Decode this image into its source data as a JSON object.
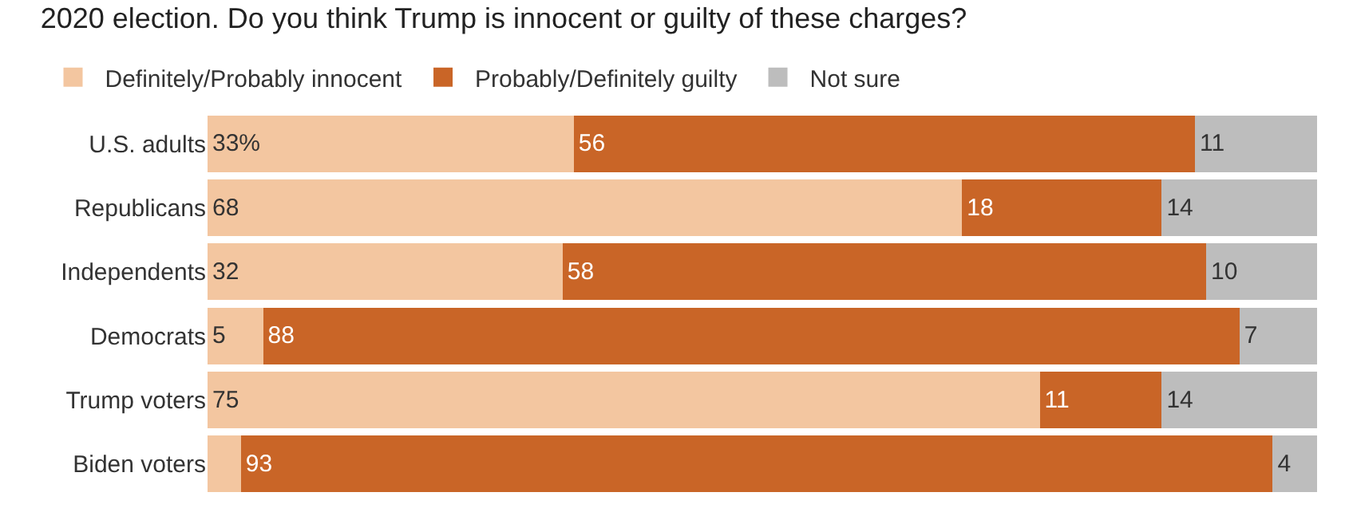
{
  "chart_data": {
    "type": "bar",
    "orientation": "horizontal",
    "stacked": true,
    "title": "2020 election. Do you think Trump is innocent or guilty of these charges?",
    "categories": [
      "U.S. adults",
      "Republicans",
      "Independents",
      "Democrats",
      "Trump voters",
      "Biden voters"
    ],
    "series": [
      {
        "name": "Definitely/Probably innocent",
        "color": "#f3c6a0",
        "values": [
          33,
          68,
          32,
          5,
          75,
          3
        ],
        "value_labels": [
          "33%",
          "68",
          "32",
          "5",
          "75",
          null
        ]
      },
      {
        "name": "Probably/Definitely guilty",
        "color": "#c96527",
        "values": [
          56,
          18,
          58,
          88,
          11,
          93
        ],
        "value_labels": [
          "56",
          "18",
          "58",
          "88",
          "11",
          "93"
        ]
      },
      {
        "name": "Not sure",
        "color": "#bdbdbd",
        "values": [
          11,
          14,
          10,
          7,
          14,
          4
        ],
        "value_labels": [
          "11",
          "14",
          "10",
          "7",
          "14",
          "4"
        ]
      }
    ],
    "xlim": [
      0,
      100
    ],
    "tick_labels": "y",
    "legend": "top left",
    "grid": false
  }
}
